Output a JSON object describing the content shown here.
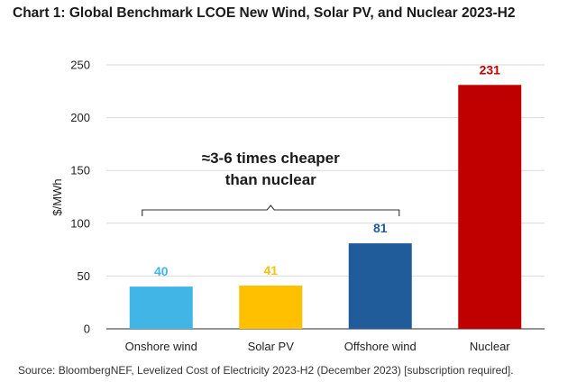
{
  "title": "Chart 1: Global Benchmark LCOE New Wind, Solar PV, and Nuclear 2023-H2",
  "source": "Source: BloombergNEF, Levelized Cost of Electricity 2023-H2 (December 2023) [subscription required].",
  "chart_data": {
    "type": "bar",
    "categories": [
      "Onshore wind",
      "Solar PV",
      "Offshore wind",
      "Nuclear"
    ],
    "values": [
      40,
      41,
      81,
      231
    ],
    "data_labels": [
      "40",
      "41",
      "81",
      "231"
    ],
    "colors": [
      "#41b6e6",
      "#ffc000",
      "#1f5c99",
      "#c00000"
    ],
    "xlabel": "",
    "ylabel": "$/MWh",
    "ylim": [
      0,
      250
    ],
    "yticks": [
      0,
      50,
      100,
      150,
      200,
      250
    ],
    "grid": true,
    "legend": "none",
    "annotation": {
      "lines": [
        "≈3-6 times cheaper",
        "than nuclear"
      ],
      "spans_categories": [
        "Onshore wind",
        "Offshore wind"
      ]
    }
  }
}
